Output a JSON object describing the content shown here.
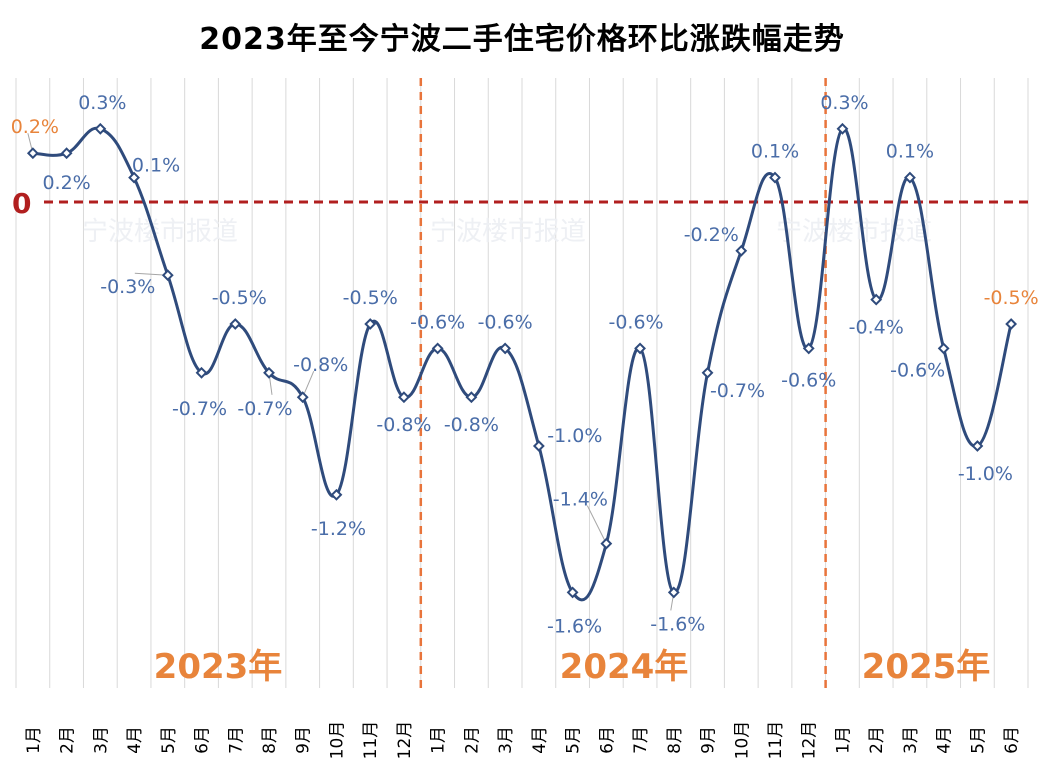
{
  "chart_data": {
    "type": "line",
    "title": "2023年至今宁波二手住宅价格环比涨跌幅走势",
    "zero_label": "0",
    "years": [
      "2023年",
      "2024年",
      "2025年"
    ],
    "watermark": "宁波楼市报道",
    "x": [
      "1月",
      "2月",
      "3月",
      "4月",
      "5月",
      "6月",
      "7月",
      "8月",
      "9月",
      "10月",
      "11月",
      "12月",
      "1月",
      "2月",
      "3月",
      "4月",
      "5月",
      "6月",
      "7月",
      "8月",
      "9月",
      "10月",
      "11月",
      "12月",
      "1月",
      "2月",
      "3月",
      "4月",
      "5月",
      "6月"
    ],
    "series": [
      {
        "values": [
          0.2,
          0.2,
          0.3,
          0.1,
          -0.3,
          -0.7,
          -0.5,
          -0.7,
          -0.8,
          -1.2,
          -0.5,
          -0.8,
          -0.6,
          -0.8,
          -0.6,
          -1.0,
          -1.6,
          -1.4,
          -0.6,
          -1.6,
          -0.7,
          -0.2,
          0.1,
          -0.6,
          0.3,
          -0.4,
          0.1,
          -0.6,
          -1.0,
          -0.5
        ],
        "labels": [
          "0.2%",
          "0.2%",
          "0.3%",
          "0.1%",
          "-0.3%",
          "-0.7%",
          "-0.5%",
          "-0.7%",
          "-0.8%",
          "-1.2%",
          "-0.5%",
          "-0.8%",
          "-0.6%",
          "-0.8%",
          "-0.6%",
          "-1.0%",
          "-1.6%",
          "-1.4%",
          "-0.6%",
          "-1.6%",
          "-0.7%",
          "-0.2%",
          "0.1%",
          "-0.6%",
          "0.3%",
          "-0.4%",
          "0.1%",
          "-0.6%",
          "-1.0%",
          "-0.5%"
        ]
      }
    ],
    "highlight_colors": {
      "line": "#2f4b7c",
      "label": "#4a6da8",
      "highlight": "#e8843b",
      "zero_line": "#b11f1f",
      "year_separator": "#e8743b"
    },
    "grid": "vertical",
    "ylim": [
      -2.0,
      0.4
    ]
  }
}
